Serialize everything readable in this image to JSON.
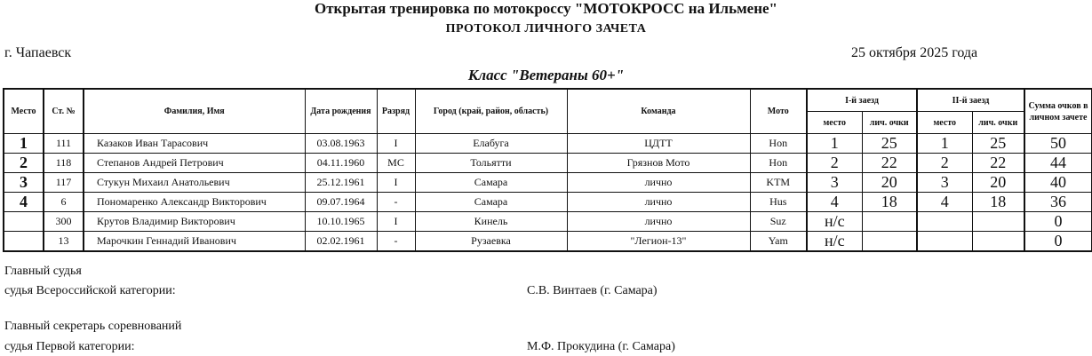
{
  "header": {
    "title": "Открытая тренировка по мотокроссу \"МОТОКРОСС на Ильмене\"",
    "subtitle": "ПРОТОКОЛ  ЛИЧНОГО  ЗАЧЕТА",
    "city": "г. Чапаевск",
    "date": "25 октября 2025 года",
    "class": "Класс \"Ветераны 60+\""
  },
  "columns": {
    "place": "Место",
    "number": "Ст. №",
    "name": "Фамилия, Имя",
    "birth": "Дата рождения",
    "rank": "Разряд",
    "city": "Город (край, район, область)",
    "team": "Команда",
    "moto": "Мото",
    "race1": "I-й заезд",
    "race2": "II-й заезд",
    "pos": "место",
    "pts": "лич. очки",
    "total": "Сумма очков в личном зачете"
  },
  "rows": [
    {
      "place": "1",
      "number": "111",
      "name": "Казаков Иван Тарасович",
      "birth": "03.08.1963",
      "rank": "I",
      "city": "Елабуга",
      "team": "ЦДТТ",
      "moto": "Hon",
      "r1pos": "1",
      "r1pts": "25",
      "r2pos": "1",
      "r2pts": "25",
      "total": "50"
    },
    {
      "place": "2",
      "number": "118",
      "name": "Степанов Андрей Петрович",
      "birth": "04.11.1960",
      "rank": "МС",
      "city": "Тольятти",
      "team": "Грязнов Мото",
      "moto": "Hon",
      "r1pos": "2",
      "r1pts": "22",
      "r2pos": "2",
      "r2pts": "22",
      "total": "44"
    },
    {
      "place": "3",
      "number": "117",
      "name": "Стукун Михаил Анатольевич",
      "birth": "25.12.1961",
      "rank": "I",
      "city": "Самара",
      "team": "лично",
      "moto": "KTM",
      "r1pos": "3",
      "r1pts": "20",
      "r2pos": "3",
      "r2pts": "20",
      "total": "40"
    },
    {
      "place": "4",
      "number": "6",
      "name": "Пономаренко Александр Викторович",
      "birth": "09.07.1964",
      "rank": "-",
      "city": "Самара",
      "team": "лично",
      "moto": "Hus",
      "r1pos": "4",
      "r1pts": "18",
      "r2pos": "4",
      "r2pts": "18",
      "total": "36"
    },
    {
      "place": "",
      "number": "300",
      "name": "Крутов Владимир Викторович",
      "birth": "10.10.1965",
      "rank": "I",
      "city": "Кинель",
      "team": "лично",
      "moto": "Suz",
      "r1pos": "н/с",
      "r1pts": "",
      "r2pos": "",
      "r2pts": "",
      "total": "0"
    },
    {
      "place": "",
      "number": "13",
      "name": "Марочкин Геннадий Иванович",
      "birth": "02.02.1961",
      "rank": "-",
      "city": "Рузаевка",
      "team": "\"Легион-13\"",
      "moto": "Yam",
      "r1pos": "н/с",
      "r1pts": "",
      "r2pos": "",
      "r2pts": "",
      "total": "0"
    }
  ],
  "footer": {
    "judge_title": "Главный судья",
    "judge_cat": "судья Всероссийской категории:",
    "judge_name": "С.В. Винтаев (г. Самара)",
    "secretary_title": "Главный секретарь соревнований",
    "secretary_cat": "судья Первой категории:",
    "secretary_name": "М.Ф. Прокудина (г. Самара)"
  }
}
